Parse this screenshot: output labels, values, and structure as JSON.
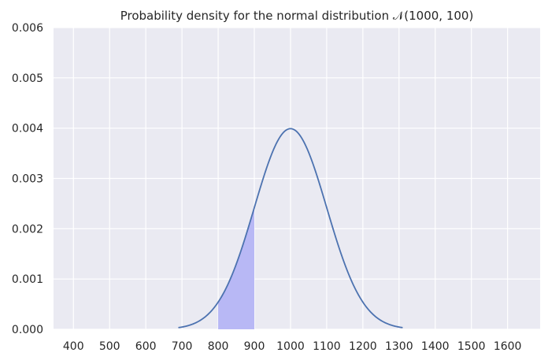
{
  "chart_data": {
    "type": "line",
    "title": "Probability density for the normal distribution 𝒩(1000, 100)",
    "distribution": {
      "mean": 1000,
      "sd": 100
    },
    "curve_domain": [
      690,
      1310
    ],
    "shaded_interval": [
      800,
      900
    ],
    "xlim": [
      345,
      1690
    ],
    "ylim": [
      0,
      0.006
    ],
    "x_ticks": [
      400,
      500,
      600,
      700,
      800,
      900,
      1000,
      1100,
      1200,
      1300,
      1400,
      1500,
      1600
    ],
    "x_tick_labels": [
      "400",
      "500",
      "600",
      "700",
      "800",
      "900",
      "1000",
      "1100",
      "1200",
      "1300",
      "1400",
      "1500",
      "1600"
    ],
    "y_ticks": [
      0,
      0.001,
      0.002,
      0.003,
      0.004,
      0.005,
      0.006
    ],
    "y_tick_labels": [
      "0.000",
      "0.001",
      "0.002",
      "0.003",
      "0.004",
      "0.005",
      "0.006"
    ],
    "xlabel": "",
    "ylabel": "",
    "grid": true,
    "colors": {
      "background": "#eaeaf2",
      "grid": "#ffffff",
      "line": "#4c72b0",
      "fill": "#b8b8f5",
      "text": "#262626"
    }
  }
}
